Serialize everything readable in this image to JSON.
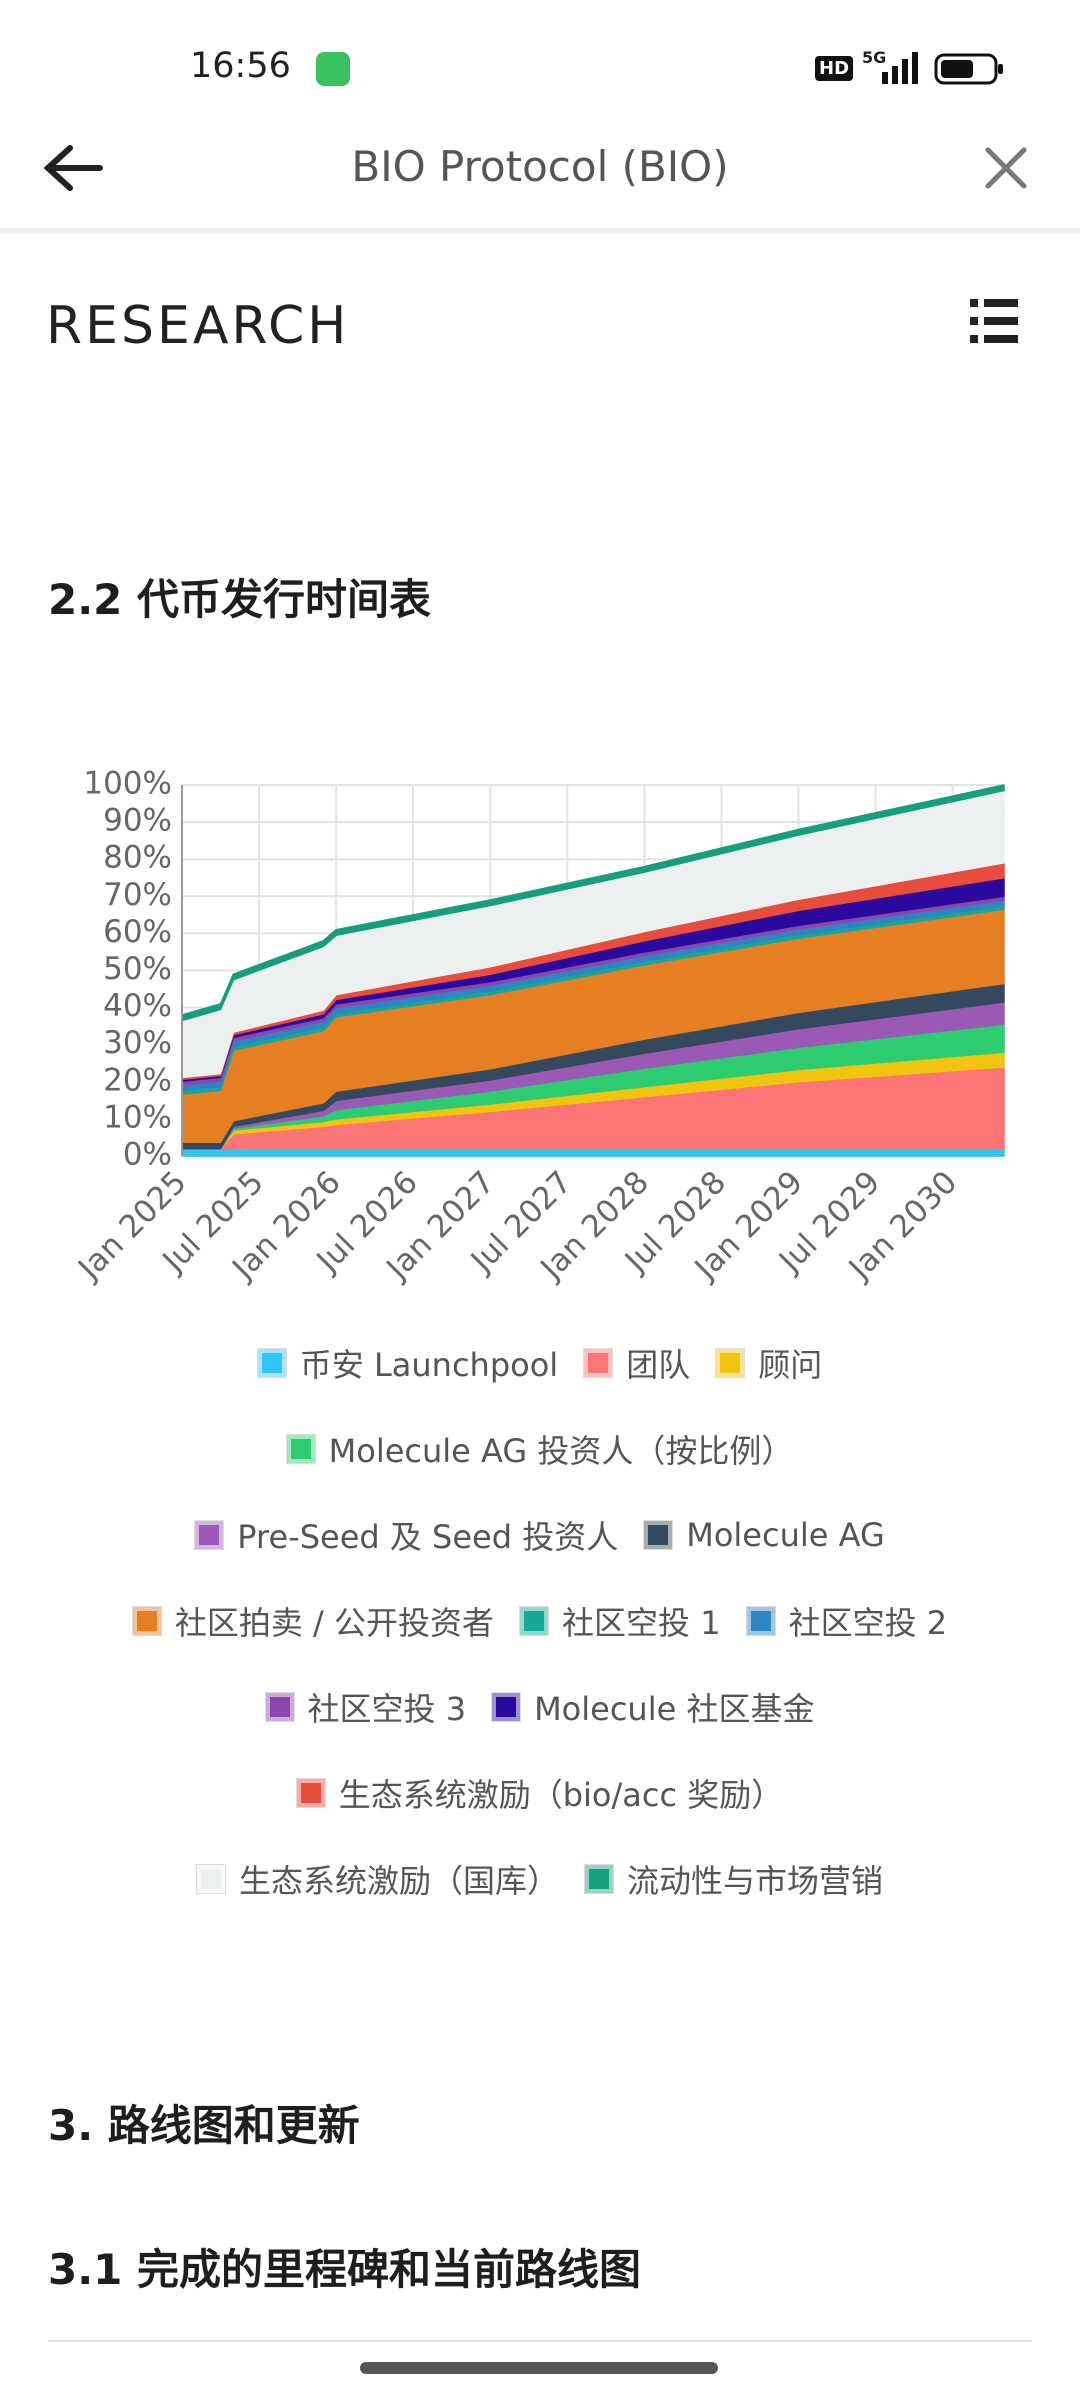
{
  "status_bar": {
    "time": "16:56",
    "hd": "HD",
    "network": "5G"
  },
  "header": {
    "title": "BIO Protocol (BIO)"
  },
  "brand": "RESEARCH",
  "section_title": "2.2 代币发行时间表",
  "headings": [
    "3. 路线图和更新",
    "3.1 完成的里程碑和当前路线图"
  ],
  "chart_data": {
    "type": "stacked_area",
    "x": [
      "2025-01",
      "2025-04",
      "2025-05",
      "2025-12",
      "2026-01",
      "2027-01",
      "2028-01",
      "2029-01",
      "2030-05"
    ],
    "xlim": [
      "2025-01",
      "2030-05"
    ],
    "xticks": [
      {
        "value": "2025-01",
        "label": "Jan 2025"
      },
      {
        "value": "2025-07",
        "label": "Jul 2025"
      },
      {
        "value": "2026-01",
        "label": "Jan 2026"
      },
      {
        "value": "2026-07",
        "label": "Jul 2026"
      },
      {
        "value": "2027-01",
        "label": "Jan 2027"
      },
      {
        "value": "2027-07",
        "label": "Jul 2027"
      },
      {
        "value": "2028-01",
        "label": "Jan 2028"
      },
      {
        "value": "2028-07",
        "label": "Jul 2028"
      },
      {
        "value": "2029-01",
        "label": "Jan 2029"
      },
      {
        "value": "2029-07",
        "label": "Jul 2029"
      },
      {
        "value": "2030-01",
        "label": "Jan 2030"
      }
    ],
    "ylim": [
      0,
      100
    ],
    "yticks": [
      {
        "value": 0,
        "label": "0%"
      },
      {
        "value": 10,
        "label": "10%"
      },
      {
        "value": 20,
        "label": "20%"
      },
      {
        "value": 30,
        "label": "30%"
      },
      {
        "value": 40,
        "label": "40%"
      },
      {
        "value": 50,
        "label": "50%"
      },
      {
        "value": 60,
        "label": "60%"
      },
      {
        "value": 70,
        "label": "70%"
      },
      {
        "value": 80,
        "label": "80%"
      },
      {
        "value": 90,
        "label": "90%"
      },
      {
        "value": 100,
        "label": "100%"
      }
    ],
    "grid": true,
    "legend": "bottom",
    "series": [
      {
        "name": "币安 Launchpool",
        "color": "#33c5f3",
        "values": [
          2,
          2,
          2,
          2,
          2,
          2,
          2,
          2,
          2
        ]
      },
      {
        "name": "团队",
        "color": "#fc7474",
        "values": [
          0,
          0,
          4,
          6,
          6.5,
          10,
          14,
          18,
          22
        ]
      },
      {
        "name": "顾问",
        "color": "#f1c40f",
        "values": [
          0,
          0,
          1,
          1.3,
          1.5,
          2,
          2.7,
          3.3,
          4
        ]
      },
      {
        "name": "Molecule AG 投资人（按比例）",
        "color": "#2ecc71",
        "values": [
          0,
          0,
          0.5,
          1.5,
          2.5,
          3.5,
          5,
          6,
          7.5
        ]
      },
      {
        "name": "Pre-Seed 及 Seed 投资人",
        "color": "#9b59b6",
        "values": [
          0,
          0,
          0.5,
          1.5,
          2.5,
          3,
          4,
          5,
          6
        ]
      },
      {
        "name": "Molecule AG",
        "color": "#34495e",
        "values": [
          1.7,
          1.7,
          1.5,
          2,
          2.5,
          3,
          3.8,
          4.4,
          5
        ]
      },
      {
        "name": "社区拍卖 / 公开投资者",
        "color": "#e67e22",
        "values": [
          13,
          14,
          19,
          19.5,
          20,
          20,
          20,
          20,
          20
        ]
      },
      {
        "name": "社区空投 1",
        "color": "#16a99a",
        "values": [
          1,
          1,
          1,
          1,
          1,
          1,
          1,
          1,
          1
        ]
      },
      {
        "name": "社区空投 2",
        "color": "#2e86c1",
        "values": [
          1.5,
          1.5,
          1.5,
          1.5,
          1.5,
          1.5,
          1.5,
          1.5,
          1.5
        ]
      },
      {
        "name": "社区空投 3",
        "color": "#8e44ad",
        "values": [
          1,
          1,
          1,
          1,
          1,
          1,
          1,
          1,
          1
        ]
      },
      {
        "name": "Molecule 社区基金",
        "color": "#2a0a9e",
        "values": [
          0.5,
          0.5,
          0.7,
          1,
          1.2,
          2,
          3,
          4,
          5
        ]
      },
      {
        "name": "生态系统激励（bio/acc 奖励）",
        "color": "#e74c3c",
        "values": [
          0.5,
          0.5,
          0.7,
          1,
          1.3,
          2,
          2.5,
          3,
          4
        ]
      },
      {
        "name": "生态系统激励（国库）",
        "color": "#ecf0f1",
        "values": [
          15.3,
          17.3,
          14.1,
          17.2,
          16,
          16.5,
          16,
          17.3,
          19.5
        ]
      },
      {
        "name": "流动性与市场营销",
        "color": "#179e7c",
        "values": [
          1.5,
          1.5,
          1.5,
          1.5,
          1.5,
          1.5,
          1.5,
          1.5,
          1.5
        ]
      }
    ]
  }
}
